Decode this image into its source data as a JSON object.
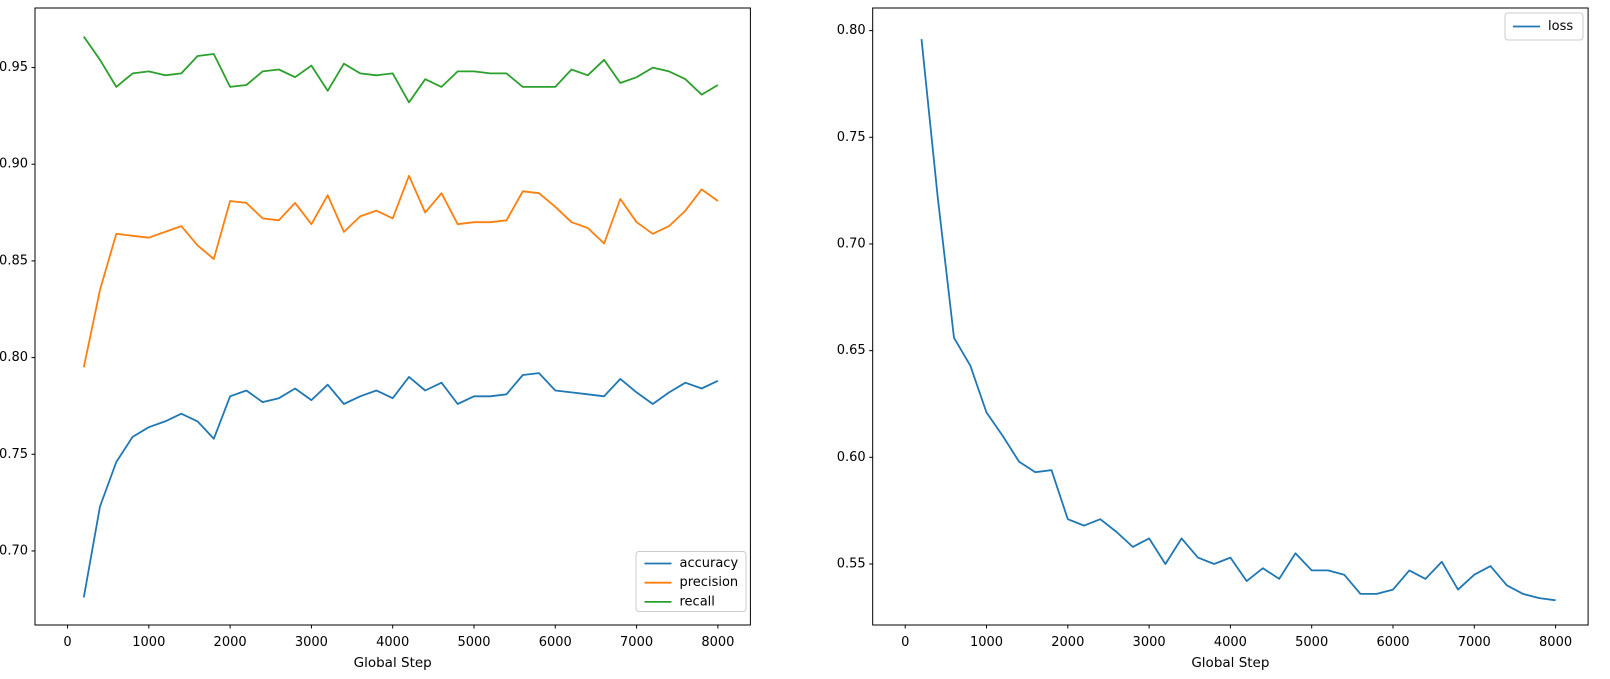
{
  "figure": {
    "background": "#ffffff",
    "spine_color": "#000000",
    "tick_label_color": "#000000",
    "legend_border_color": "#cccccc",
    "legend_background": "rgba(255,255,255,0.85)"
  },
  "chart_data": [
    {
      "id": "metrics",
      "type": "line",
      "title": "",
      "xlabel": "Global Step",
      "ylabel": "",
      "grid": false,
      "xlim": [
        -400,
        8400
      ],
      "ylim": [
        0.6617,
        0.9808
      ],
      "xticks": [
        0,
        1000,
        2000,
        3000,
        4000,
        5000,
        6000,
        7000,
        8000
      ],
      "yticks": [
        0.7,
        0.75,
        0.8,
        0.85,
        0.9,
        0.95
      ],
      "x": [
        200,
        400,
        600,
        800,
        1000,
        1200,
        1400,
        1600,
        1800,
        2000,
        2200,
        2400,
        2600,
        2800,
        3000,
        3200,
        3400,
        3600,
        3800,
        4000,
        4200,
        4400,
        4600,
        4800,
        5000,
        5200,
        5400,
        5600,
        5800,
        6000,
        6200,
        6400,
        6600,
        6800,
        7000,
        7200,
        7400,
        7600,
        7800,
        8000
      ],
      "series": [
        {
          "name": "accuracy",
          "color": "#1f77b4",
          "values": [
            0.676,
            0.723,
            0.746,
            0.759,
            0.764,
            0.767,
            0.771,
            0.767,
            0.758,
            0.78,
            0.783,
            0.777,
            0.779,
            0.784,
            0.778,
            0.786,
            0.776,
            0.78,
            0.783,
            0.779,
            0.79,
            0.783,
            0.787,
            0.776,
            0.78,
            0.78,
            0.781,
            0.791,
            0.792,
            0.783,
            0.782,
            0.781,
            0.78,
            0.789,
            0.782,
            0.776,
            0.782,
            0.787,
            0.784,
            0.788
          ]
        },
        {
          "name": "precision",
          "color": "#ff7f0e",
          "values": [
            0.795,
            0.835,
            0.864,
            0.863,
            0.862,
            0.865,
            0.868,
            0.858,
            0.851,
            0.881,
            0.88,
            0.872,
            0.871,
            0.88,
            0.869,
            0.884,
            0.865,
            0.873,
            0.876,
            0.872,
            0.894,
            0.875,
            0.885,
            0.869,
            0.87,
            0.87,
            0.871,
            0.886,
            0.885,
            0.878,
            0.87,
            0.867,
            0.859,
            0.882,
            0.87,
            0.864,
            0.868,
            0.876,
            0.887,
            0.881
          ]
        },
        {
          "name": "recall",
          "color": "#2ca02c",
          "values": [
            0.966,
            0.954,
            0.94,
            0.947,
            0.948,
            0.946,
            0.947,
            0.956,
            0.957,
            0.94,
            0.941,
            0.948,
            0.949,
            0.945,
            0.951,
            0.938,
            0.952,
            0.947,
            0.946,
            0.947,
            0.932,
            0.944,
            0.94,
            0.948,
            0.948,
            0.947,
            0.947,
            0.94,
            0.94,
            0.94,
            0.949,
            0.946,
            0.954,
            0.942,
            0.945,
            0.95,
            0.948,
            0.944,
            0.936,
            0.941
          ]
        }
      ],
      "legend": {
        "position": "lower right",
        "entries": [
          "accuracy",
          "precision",
          "recall"
        ]
      }
    },
    {
      "id": "loss",
      "type": "line",
      "title": "",
      "xlabel": "Global Step",
      "ylabel": "",
      "grid": false,
      "xlim": [
        -400,
        8400
      ],
      "ylim": [
        0.5214,
        0.8106
      ],
      "xticks": [
        0,
        1000,
        2000,
        3000,
        4000,
        5000,
        6000,
        7000,
        8000
      ],
      "yticks": [
        0.55,
        0.6,
        0.65,
        0.7,
        0.75,
        0.8
      ],
      "x": [
        200,
        400,
        600,
        800,
        1000,
        1200,
        1400,
        1600,
        1800,
        2000,
        2200,
        2400,
        2600,
        2800,
        3000,
        3200,
        3400,
        3600,
        3800,
        4000,
        4200,
        4400,
        4600,
        4800,
        5000,
        5200,
        5400,
        5600,
        5800,
        6000,
        6200,
        6400,
        6600,
        6800,
        7000,
        7200,
        7400,
        7600,
        7800,
        8000
      ],
      "series": [
        {
          "name": "loss",
          "color": "#1f77b4",
          "values": [
            0.796,
            0.722,
            0.656,
            0.643,
            0.621,
            0.61,
            0.598,
            0.593,
            0.594,
            0.571,
            0.568,
            0.571,
            0.565,
            0.558,
            0.562,
            0.55,
            0.562,
            0.553,
            0.55,
            0.553,
            0.542,
            0.548,
            0.543,
            0.555,
            0.547,
            0.547,
            0.545,
            0.536,
            0.536,
            0.538,
            0.547,
            0.543,
            0.551,
            0.538,
            0.545,
            0.549,
            0.54,
            0.536,
            0.534,
            0.533
          ]
        }
      ],
      "legend": {
        "position": "upper right",
        "entries": [
          "loss"
        ]
      }
    }
  ]
}
